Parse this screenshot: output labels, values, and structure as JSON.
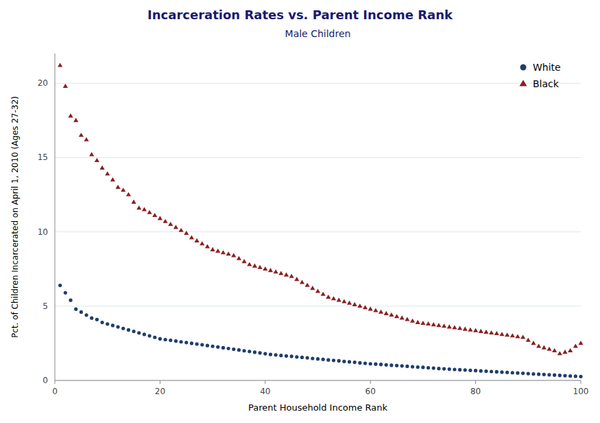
{
  "chart_data": {
    "type": "scatter",
    "title": "Incarceration Rates vs. Parent Income Rank",
    "subtitle": "Male Children",
    "xlabel": "Parent Household Income Rank",
    "ylabel": "Pct. of Children Incarcerated on April 1, 2010 (Ages 27-32)",
    "xlim": [
      0,
      100
    ],
    "ylim": [
      0,
      22
    ],
    "xticks": [
      0,
      20,
      40,
      60,
      80,
      100
    ],
    "yticks": [
      0,
      5,
      10,
      15,
      20
    ],
    "grid": "y",
    "legend": "upper right",
    "series": [
      {
        "name": "White",
        "color": "#1f3d6e",
        "marker": "circle",
        "x": [
          1,
          2,
          3,
          4,
          5,
          6,
          7,
          8,
          9,
          10,
          11,
          12,
          13,
          14,
          15,
          16,
          17,
          18,
          19,
          20,
          21,
          22,
          23,
          24,
          25,
          26,
          27,
          28,
          29,
          30,
          31,
          32,
          33,
          34,
          35,
          36,
          37,
          38,
          39,
          40,
          41,
          42,
          43,
          44,
          45,
          46,
          47,
          48,
          49,
          50,
          51,
          52,
          53,
          54,
          55,
          56,
          57,
          58,
          59,
          60,
          61,
          62,
          63,
          64,
          65,
          66,
          67,
          68,
          69,
          70,
          71,
          72,
          73,
          74,
          75,
          76,
          77,
          78,
          79,
          80,
          81,
          82,
          83,
          84,
          85,
          86,
          87,
          88,
          89,
          90,
          91,
          92,
          93,
          94,
          95,
          96,
          97,
          98,
          99,
          100
        ],
        "values": [
          6.4,
          5.9,
          5.4,
          4.8,
          4.6,
          4.4,
          4.2,
          4.1,
          3.9,
          3.8,
          3.7,
          3.6,
          3.5,
          3.4,
          3.3,
          3.2,
          3.1,
          3.0,
          2.9,
          2.8,
          2.75,
          2.7,
          2.65,
          2.6,
          2.55,
          2.5,
          2.45,
          2.4,
          2.35,
          2.3,
          2.25,
          2.2,
          2.15,
          2.1,
          2.05,
          2.0,
          1.95,
          1.9,
          1.85,
          1.8,
          1.75,
          1.72,
          1.68,
          1.65,
          1.62,
          1.58,
          1.55,
          1.52,
          1.48,
          1.45,
          1.42,
          1.38,
          1.35,
          1.32,
          1.28,
          1.25,
          1.22,
          1.18,
          1.15,
          1.12,
          1.1,
          1.08,
          1.05,
          1.02,
          1.0,
          0.98,
          0.95,
          0.92,
          0.9,
          0.88,
          0.85,
          0.83,
          0.8,
          0.78,
          0.76,
          0.74,
          0.72,
          0.7,
          0.68,
          0.66,
          0.64,
          0.62,
          0.6,
          0.58,
          0.56,
          0.54,
          0.52,
          0.5,
          0.48,
          0.46,
          0.44,
          0.42,
          0.4,
          0.38,
          0.36,
          0.34,
          0.32,
          0.3,
          0.28,
          0.26
        ]
      },
      {
        "name": "Black",
        "color": "#8b2020",
        "marker": "triangle",
        "x": [
          1,
          2,
          3,
          4,
          5,
          6,
          7,
          8,
          9,
          10,
          11,
          12,
          13,
          14,
          15,
          16,
          17,
          18,
          19,
          20,
          21,
          22,
          23,
          24,
          25,
          26,
          27,
          28,
          29,
          30,
          31,
          32,
          33,
          34,
          35,
          36,
          37,
          38,
          39,
          40,
          41,
          42,
          43,
          44,
          45,
          46,
          47,
          48,
          49,
          50,
          51,
          52,
          53,
          54,
          55,
          56,
          57,
          58,
          59,
          60,
          61,
          62,
          63,
          64,
          65,
          66,
          67,
          68,
          69,
          70,
          71,
          72,
          73,
          74,
          75,
          76,
          77,
          78,
          79,
          80,
          81,
          82,
          83,
          84,
          85,
          86,
          87,
          88,
          89,
          90,
          91,
          92,
          93,
          94,
          95,
          96,
          97,
          98,
          99,
          100
        ],
        "values": [
          21.2,
          19.8,
          17.8,
          17.5,
          16.5,
          16.2,
          15.2,
          14.8,
          14.3,
          13.9,
          13.5,
          13.0,
          12.8,
          12.5,
          12.0,
          11.6,
          11.5,
          11.3,
          11.1,
          10.9,
          10.7,
          10.5,
          10.3,
          10.1,
          9.9,
          9.6,
          9.4,
          9.2,
          9.0,
          8.8,
          8.7,
          8.6,
          8.5,
          8.4,
          8.2,
          8.0,
          7.8,
          7.7,
          7.6,
          7.5,
          7.4,
          7.3,
          7.2,
          7.1,
          7.0,
          6.8,
          6.6,
          6.4,
          6.2,
          6.0,
          5.8,
          5.6,
          5.5,
          5.4,
          5.3,
          5.2,
          5.1,
          5.0,
          4.9,
          4.8,
          4.7,
          4.6,
          4.5,
          4.4,
          4.3,
          4.2,
          4.1,
          4.0,
          3.9,
          3.85,
          3.8,
          3.75,
          3.7,
          3.65,
          3.6,
          3.55,
          3.5,
          3.45,
          3.4,
          3.35,
          3.3,
          3.25,
          3.2,
          3.15,
          3.1,
          3.05,
          3.0,
          2.95,
          2.9,
          2.7,
          2.5,
          2.3,
          2.2,
          2.1,
          2.0,
          1.8,
          1.9,
          2.0,
          2.3,
          2.5
        ]
      }
    ]
  }
}
